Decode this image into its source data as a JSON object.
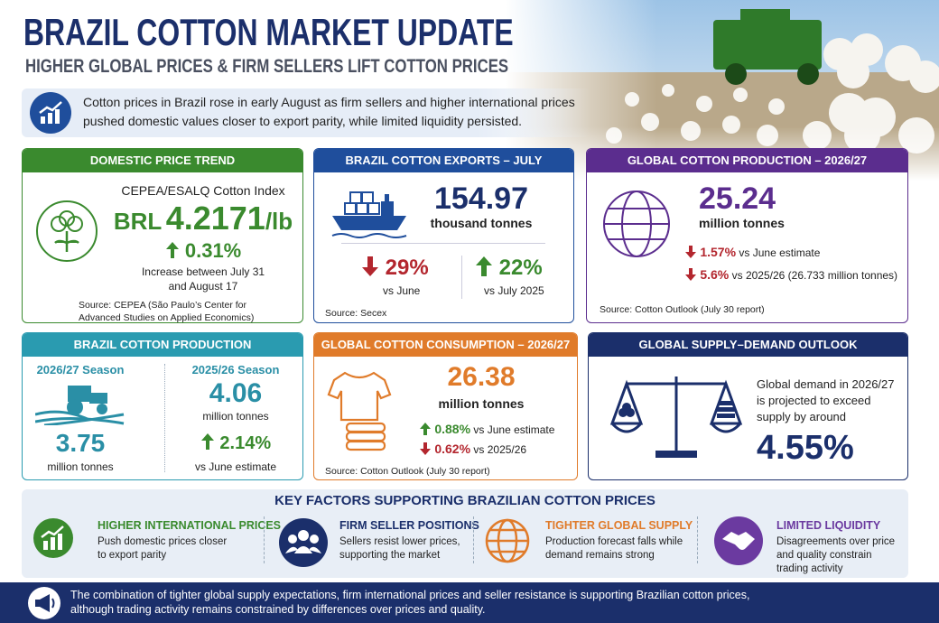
{
  "header": {
    "title": "BRAZIL COTTON MARKET UPDATE",
    "subtitle": "HIGHER GLOBAL PRICES & FIRM SELLERS LIFT COTTON PRICES"
  },
  "intro": {
    "lines": [
      "Cotton prices in Brazil rose in early August as firm sellers and higher international prices",
      "pushed domestic values closer to export parity, while limited liquidity persisted."
    ]
  },
  "domestic_price": {
    "header": "DOMESTIC PRICE TREND",
    "index_name": "CEPEA/ESALQ Cotton Index",
    "currency": "BRL",
    "price": "4.2171",
    "price_unit": "/lb",
    "change": "0.31%",
    "change_note": [
      "Increase between July 31",
      "and August 17"
    ],
    "source": [
      "Source: CEPEA (São Paulo’s Center for",
      "Advanced Studies on Applied Economics)"
    ]
  },
  "exports": {
    "header": "BRAZIL COTTON EXPORTS – JULY",
    "value": "154.97",
    "unit": "thousand tonnes",
    "changes": [
      {
        "value": "29%",
        "label": "vs June"
      },
      {
        "value": "22%",
        "label": "vs July 2025"
      }
    ],
    "source": "Source: Secex"
  },
  "global_production": {
    "header": "GLOBAL COTTON PRODUCTION – 2026/27",
    "value": "25.24",
    "unit": "million tonnes",
    "changes": [
      {
        "value": "1.57%",
        "label": "vs June estimate"
      },
      {
        "value": "5.6%",
        "label": "vs 2025/26 (26.733 million tonnes)"
      }
    ],
    "source": "Source: Cotton Outlook (July 30 report)"
  },
  "brazil_production": {
    "header": "BRAZIL COTTON PRODUCTION",
    "seasons": [
      {
        "season": "2026/27 Season",
        "value": "3.75",
        "unit": "million tonnes"
      },
      {
        "season": "2025/26 Season",
        "value": "4.06",
        "unit": "million tonnes",
        "change": "2.14%",
        "change_label": "vs June estimate"
      }
    ]
  },
  "global_consumption": {
    "header": "GLOBAL COTTON CONSUMPTION – 2026/27",
    "value": "26.38",
    "unit": "million tonnes",
    "changes": [
      {
        "value": "0.88%",
        "label": "vs June estimate"
      },
      {
        "value": "0.62%",
        "label": "vs 2025/26"
      }
    ],
    "source": "Source: Cotton Outlook (July 30 report)"
  },
  "outlook": {
    "header": "GLOBAL SUPPLY–DEMAND OUTLOOK",
    "lines": [
      "Global demand in 2026/27",
      "is projected to exceed",
      "supply by around"
    ],
    "value": "4.55%"
  },
  "key_factors": {
    "title": "KEY FACTORS SUPPORTING BRAZILIAN COTTON PRICES",
    "items": [
      {
        "title": "HIGHER INTERNATIONAL PRICES",
        "lines": [
          "Push domestic prices closer",
          "to export parity"
        ]
      },
      {
        "title": "FIRM SELLER POSITIONS",
        "lines": [
          "Sellers resist lower prices,",
          "supporting the market"
        ]
      },
      {
        "title": "TIGHTER GLOBAL SUPPLY",
        "lines": [
          "Production forecast falls while",
          "demand remains strong"
        ]
      },
      {
        "title": "LIMITED LIQUIDITY",
        "lines": [
          "Disagreements over price",
          "and quality constrain",
          "trading activity"
        ]
      }
    ]
  },
  "footer": {
    "lines": [
      "The combination of tighter global supply expectations, firm international prices and seller resistance is supporting Brazilian cotton prices,",
      "although trading activity remains constrained by differences over prices and quality."
    ]
  }
}
